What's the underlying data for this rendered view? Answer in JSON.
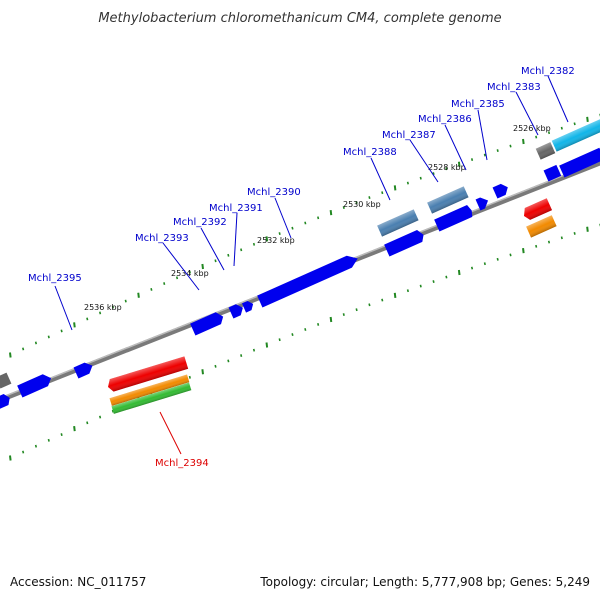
{
  "title": "Methylobacterium chloromethanicum CM4, complete genome",
  "footer": {
    "accession": "Accession: NC_011757",
    "summary": "Topology: circular; Length: 5,777,908 bp; Genes: 5,249"
  },
  "colors": {
    "gene_blue": "#0000ee",
    "gene_steel": "#4a7fb0",
    "gene_cyan": "#11b5e8",
    "gene_gray": "#666666",
    "gene_red": "#ee0000",
    "gene_orange": "#f28a00",
    "gene_green": "#33bb33",
    "backbone": "#888888",
    "tick_green": "#228822",
    "label_blue": "#0000cc",
    "label_red": "#dd0000"
  },
  "kbp_labels": [
    "2526 kbp",
    "2528 kbp",
    "2530 kbp",
    "2532 kbp",
    "2534 kbp",
    "2536 kbp"
  ],
  "gene_labels": [
    {
      "text": "Mchl_2382",
      "color": "blue"
    },
    {
      "text": "Mchl_2383",
      "color": "blue"
    },
    {
      "text": "Mchl_2385",
      "color": "blue"
    },
    {
      "text": "Mchl_2386",
      "color": "blue"
    },
    {
      "text": "Mchl_2387",
      "color": "blue"
    },
    {
      "text": "Mchl_2388",
      "color": "blue"
    },
    {
      "text": "Mchl_2390",
      "color": "blue"
    },
    {
      "text": "Mchl_2391",
      "color": "blue"
    },
    {
      "text": "Mchl_2392",
      "color": "blue"
    },
    {
      "text": "Mchl_2393",
      "color": "blue"
    },
    {
      "text": "Mchl_2395",
      "color": "blue"
    },
    {
      "text": "Mchl_2394",
      "color": "red"
    }
  ]
}
